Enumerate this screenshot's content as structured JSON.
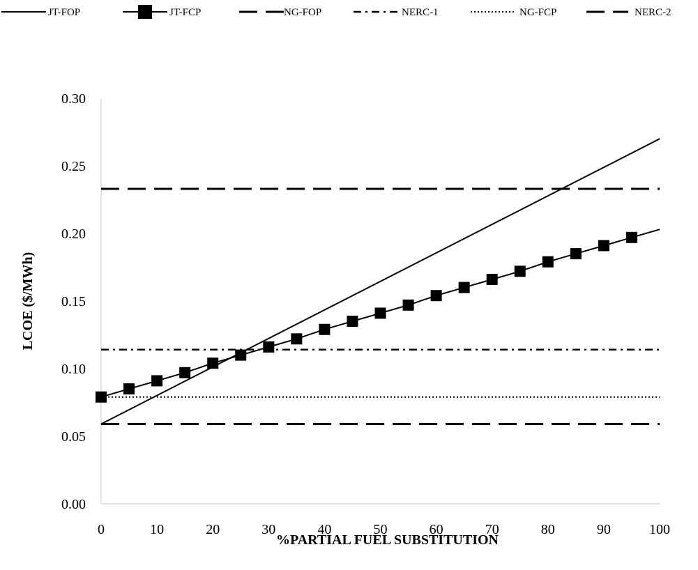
{
  "chart_data": {
    "type": "line",
    "title": "",
    "xlabel": "%PARTIAL FUEL SUBSTITUTION",
    "ylabel": "LCOE ($/MWh)",
    "xlim": [
      0,
      100
    ],
    "ylim": [
      0,
      0.3
    ],
    "x_ticks": [
      "0",
      "10",
      "20",
      "30",
      "40",
      "50",
      "60",
      "70",
      "80",
      "90",
      "100"
    ],
    "y_ticks": [
      "0.00",
      "0.05",
      "0.10",
      "0.15",
      "0.20",
      "0.25",
      "0.30"
    ],
    "grid": false,
    "legend_position": "top",
    "series": [
      {
        "name": "JT-FOP",
        "style": "solid",
        "marker": "none",
        "color": "#000000",
        "x": [
          0,
          100
        ],
        "y": [
          0.059,
          0.27
        ]
      },
      {
        "name": "JT-FCP",
        "style": "solid",
        "marker": "square",
        "color": "#000000",
        "x": [
          0,
          5,
          10,
          15,
          20,
          25,
          30,
          35,
          40,
          45,
          50,
          55,
          60,
          65,
          70,
          75,
          80,
          85,
          90,
          95,
          100
        ],
        "y": [
          0.079,
          0.085,
          0.091,
          0.097,
          0.104,
          0.11,
          0.116,
          0.122,
          0.129,
          0.135,
          0.141,
          0.147,
          0.154,
          0.16,
          0.166,
          0.172,
          0.179,
          0.185,
          0.191,
          0.197,
          0.203
        ],
        "marker_x": [
          0,
          5,
          10,
          15,
          20,
          25,
          30,
          35,
          40,
          45,
          50,
          55,
          60,
          65,
          70,
          75,
          80,
          85,
          90,
          95
        ]
      },
      {
        "name": "NG-FOP",
        "style": "longdash",
        "marker": "none",
        "color": "#000000",
        "x": [
          0,
          100
        ],
        "y": [
          0.233,
          0.233
        ]
      },
      {
        "name": "NERC-1",
        "style": "dashdot",
        "marker": "none",
        "color": "#000000",
        "x": [
          0,
          100
        ],
        "y": [
          0.114,
          0.114
        ]
      },
      {
        "name": "NG-FCP",
        "style": "dotted",
        "marker": "none",
        "color": "#000000",
        "x": [
          0,
          100
        ],
        "y": [
          0.079,
          0.079
        ]
      },
      {
        "name": "NERC-2",
        "style": "longdash",
        "marker": "none",
        "color": "#000000",
        "x": [
          0,
          100
        ],
        "y": [
          0.059,
          0.059
        ]
      }
    ]
  }
}
